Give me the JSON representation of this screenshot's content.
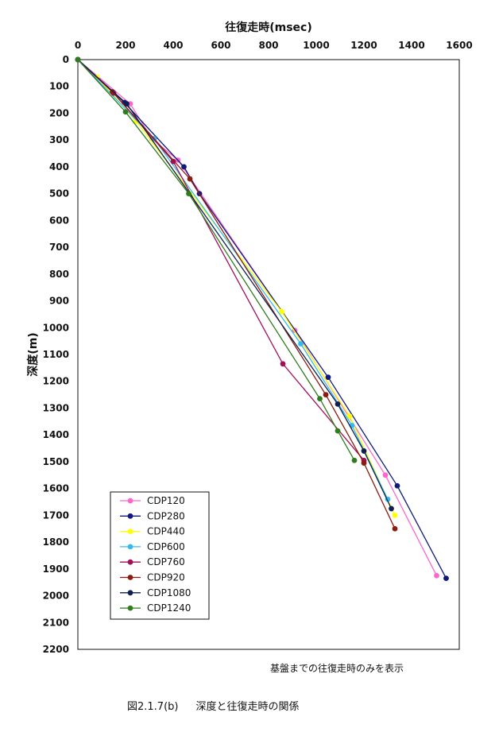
{
  "chart_data": {
    "type": "line",
    "title": "",
    "xlabel": "往復走時(msec)",
    "ylabel": "深度(m)",
    "xlim": [
      0,
      1600
    ],
    "ylim": [
      2200,
      0
    ],
    "x_ticks": [
      0,
      200,
      400,
      600,
      800,
      1000,
      1200,
      1400,
      1600
    ],
    "y_ticks": [
      0,
      100,
      200,
      300,
      400,
      500,
      600,
      700,
      800,
      900,
      1000,
      1100,
      1200,
      1300,
      1400,
      1500,
      1600,
      1700,
      1800,
      1900,
      2000,
      2100,
      2200
    ],
    "x_axis_position": "top",
    "grid": false,
    "legend_position": "bottom-left",
    "series": [
      {
        "name": "CDP120",
        "color": "#ff66cc",
        "points": [
          [
            0,
            0
          ],
          [
            220,
            165
          ],
          [
            310,
            295
          ],
          [
            420,
            375
          ],
          [
            910,
            1010
          ],
          [
            1290,
            1550
          ],
          [
            1505,
            1925
          ]
        ]
      },
      {
        "name": "CDP280",
        "color": "#101a7a",
        "points": [
          [
            0,
            0
          ],
          [
            195,
            160
          ],
          [
            445,
            400
          ],
          [
            510,
            500
          ],
          [
            1050,
            1185
          ],
          [
            1340,
            1590
          ],
          [
            1545,
            1935
          ]
        ]
      },
      {
        "name": "CDP440",
        "color": "#ffff00",
        "points": [
          [
            0,
            0
          ],
          [
            80,
            65
          ],
          [
            245,
            230
          ],
          [
            855,
            940
          ],
          [
            1140,
            1330
          ],
          [
            1330,
            1700
          ]
        ]
      },
      {
        "name": "CDP600",
        "color": "#33bbee",
        "points": [
          [
            0,
            0
          ],
          [
            320,
            295
          ],
          [
            935,
            1060
          ],
          [
            1150,
            1365
          ],
          [
            1300,
            1640
          ]
        ]
      },
      {
        "name": "CDP760",
        "color": "#a0105a",
        "points": [
          [
            0,
            0
          ],
          [
            150,
            125
          ],
          [
            400,
            380
          ],
          [
            860,
            1135
          ],
          [
            1200,
            1495
          ]
        ]
      },
      {
        "name": "CDP920",
        "color": "#8a1c10",
        "points": [
          [
            0,
            0
          ],
          [
            145,
            120
          ],
          [
            470,
            445
          ],
          [
            1040,
            1250
          ],
          [
            1200,
            1505
          ],
          [
            1330,
            1750
          ]
        ]
      },
      {
        "name": "CDP1080",
        "color": "#0d2050",
        "points": [
          [
            0,
            0
          ],
          [
            205,
            165
          ],
          [
            1090,
            1285
          ],
          [
            1200,
            1460
          ],
          [
            1315,
            1675
          ]
        ]
      },
      {
        "name": "CDP1240",
        "color": "#2e7d1c",
        "points": [
          [
            0,
            0
          ],
          [
            200,
            195
          ],
          [
            465,
            500
          ],
          [
            1015,
            1265
          ],
          [
            1090,
            1385
          ],
          [
            1160,
            1495
          ]
        ]
      }
    ]
  },
  "note": "基盤までの往復走時のみを表示",
  "caption": {
    "number": "図2.1.7(b)",
    "title": "深度と往復走時の関係"
  }
}
